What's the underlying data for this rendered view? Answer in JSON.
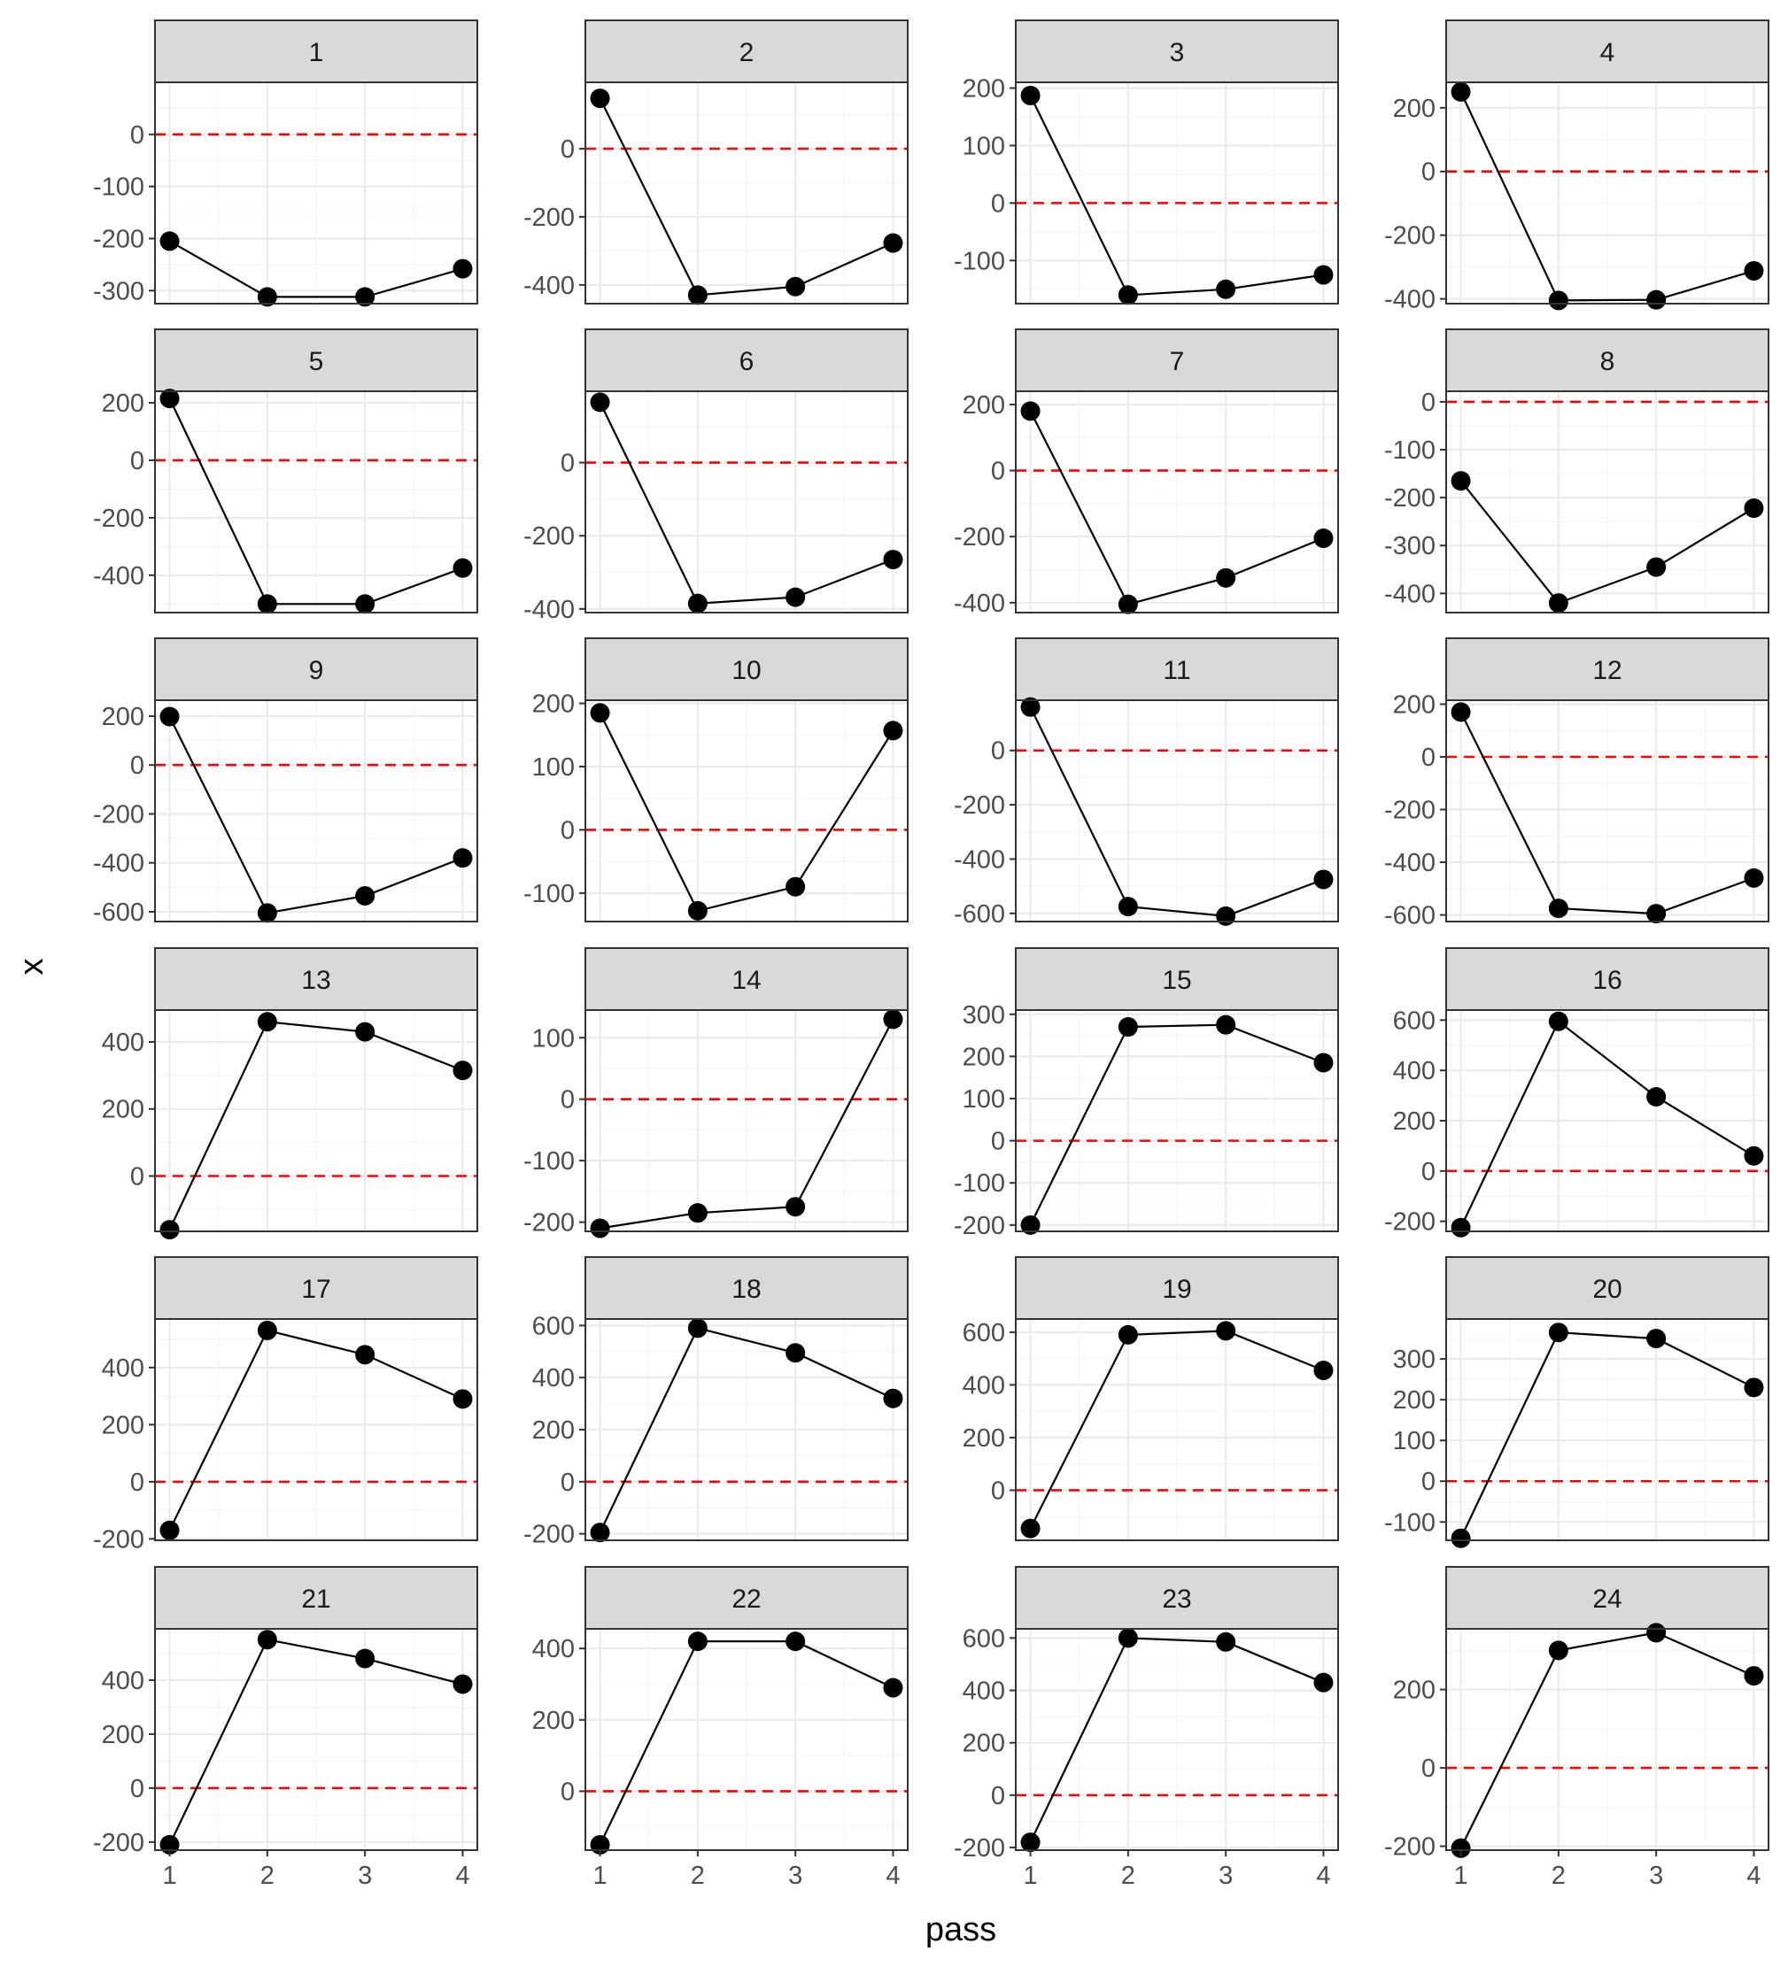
{
  "chart_data": {
    "type": "line",
    "layout": "facet-grid",
    "ncol": 4,
    "xlabel": "pass",
    "ylabel": "x",
    "x": [
      1,
      2,
      3,
      4
    ],
    "xlim": [
      0.85,
      4.15
    ],
    "x_ticks": [
      1,
      2,
      3,
      4
    ],
    "reference_line": {
      "y": 0,
      "style": "dashed",
      "color": "#ff0000"
    },
    "grid": true,
    "colors": {
      "line": "#000000",
      "point": "#000000",
      "strip_bg": "#d9d9d9",
      "strip_border": "#333333",
      "panel_border": "#333333",
      "grid_major": "#ebebeb",
      "grid_minor": "#f5f5f5"
    },
    "panels": [
      {
        "label": "1",
        "values": [
          -205,
          -312,
          -312,
          -258
        ],
        "ylim": [
          -325,
          100
        ],
        "y_ticks": [
          -300,
          -200,
          -100,
          0
        ]
      },
      {
        "label": "2",
        "values": [
          148,
          -430,
          -405,
          -277
        ],
        "ylim": [
          -455,
          195
        ],
        "y_ticks": [
          -400,
          -200,
          0
        ]
      },
      {
        "label": "3",
        "values": [
          187,
          -160,
          -150,
          -125
        ],
        "ylim": [
          -175,
          210
        ],
        "y_ticks": [
          -100,
          0,
          100,
          200
        ]
      },
      {
        "label": "4",
        "values": [
          250,
          -405,
          -403,
          -312
        ],
        "ylim": [
          -415,
          280
        ],
        "y_ticks": [
          -400,
          -200,
          0,
          200
        ]
      },
      {
        "label": "5",
        "values": [
          215,
          -500,
          -500,
          -375
        ],
        "ylim": [
          -530,
          240
        ],
        "y_ticks": [
          -400,
          -200,
          0,
          200
        ]
      },
      {
        "label": "6",
        "values": [
          165,
          -385,
          -368,
          -265
        ],
        "ylim": [
          -410,
          195
        ],
        "y_ticks": [
          -400,
          -200,
          0
        ]
      },
      {
        "label": "7",
        "values": [
          180,
          -405,
          -325,
          -205
        ],
        "ylim": [
          -430,
          240
        ],
        "y_ticks": [
          -400,
          -200,
          0,
          200
        ]
      },
      {
        "label": "8",
        "values": [
          -165,
          -420,
          -345,
          -222
        ],
        "ylim": [
          -440,
          22
        ],
        "y_ticks": [
          -400,
          -300,
          -200,
          -100,
          0
        ]
      },
      {
        "label": "9",
        "values": [
          198,
          -605,
          -535,
          -380
        ],
        "ylim": [
          -640,
          265
        ],
        "y_ticks": [
          -600,
          -400,
          -200,
          0,
          200
        ]
      },
      {
        "label": "10",
        "values": [
          185,
          -128,
          -90,
          157
        ],
        "ylim": [
          -145,
          205
        ],
        "y_ticks": [
          -100,
          0,
          100,
          200
        ]
      },
      {
        "label": "11",
        "values": [
          160,
          -575,
          -610,
          -475
        ],
        "ylim": [
          -630,
          185
        ],
        "y_ticks": [
          -600,
          -400,
          -200,
          0
        ]
      },
      {
        "label": "12",
        "values": [
          170,
          -575,
          -595,
          -460
        ],
        "ylim": [
          -625,
          215
        ],
        "y_ticks": [
          -600,
          -400,
          -200,
          0,
          200
        ]
      },
      {
        "label": "13",
        "values": [
          -160,
          460,
          430,
          315
        ],
        "ylim": [
          -165,
          495
        ],
        "y_ticks": [
          0,
          200,
          400
        ]
      },
      {
        "label": "14",
        "values": [
          -210,
          -185,
          -175,
          130
        ],
        "ylim": [
          -215,
          145
        ],
        "y_ticks": [
          -200,
          -100,
          0,
          100
        ]
      },
      {
        "label": "15",
        "values": [
          -200,
          270,
          275,
          185
        ],
        "ylim": [
          -215,
          310
        ],
        "y_ticks": [
          -200,
          -100,
          0,
          100,
          200,
          300
        ]
      },
      {
        "label": "16",
        "values": [
          -225,
          595,
          295,
          60
        ],
        "ylim": [
          -240,
          640
        ],
        "y_ticks": [
          -200,
          0,
          200,
          400,
          600
        ]
      },
      {
        "label": "17",
        "values": [
          -170,
          530,
          445,
          290
        ],
        "ylim": [
          -205,
          570
        ],
        "y_ticks": [
          -200,
          0,
          200,
          400
        ]
      },
      {
        "label": "18",
        "values": [
          -195,
          590,
          495,
          320
        ],
        "ylim": [
          -225,
          625
        ],
        "y_ticks": [
          -200,
          0,
          200,
          400,
          600
        ]
      },
      {
        "label": "19",
        "values": [
          -145,
          590,
          605,
          455
        ],
        "ylim": [
          -190,
          650
        ],
        "y_ticks": [
          0,
          200,
          400,
          600
        ]
      },
      {
        "label": "20",
        "values": [
          -140,
          365,
          350,
          230
        ],
        "ylim": [
          -145,
          398
        ],
        "y_ticks": [
          -100,
          0,
          100,
          200,
          300
        ]
      },
      {
        "label": "21",
        "values": [
          -210,
          550,
          480,
          385
        ],
        "ylim": [
          -230,
          590
        ],
        "y_ticks": [
          -200,
          0,
          200,
          400
        ]
      },
      {
        "label": "22",
        "values": [
          -150,
          420,
          420,
          290
        ],
        "ylim": [
          -165,
          455
        ],
        "y_ticks": [
          0,
          200,
          400
        ]
      },
      {
        "label": "23",
        "values": [
          -180,
          600,
          585,
          430
        ],
        "ylim": [
          -210,
          635
        ],
        "y_ticks": [
          -200,
          0,
          200,
          400,
          600
        ]
      },
      {
        "label": "24",
        "values": [
          -205,
          300,
          345,
          235
        ],
        "ylim": [
          -210,
          355
        ],
        "y_ticks": [
          -200,
          0,
          200
        ]
      }
    ]
  }
}
